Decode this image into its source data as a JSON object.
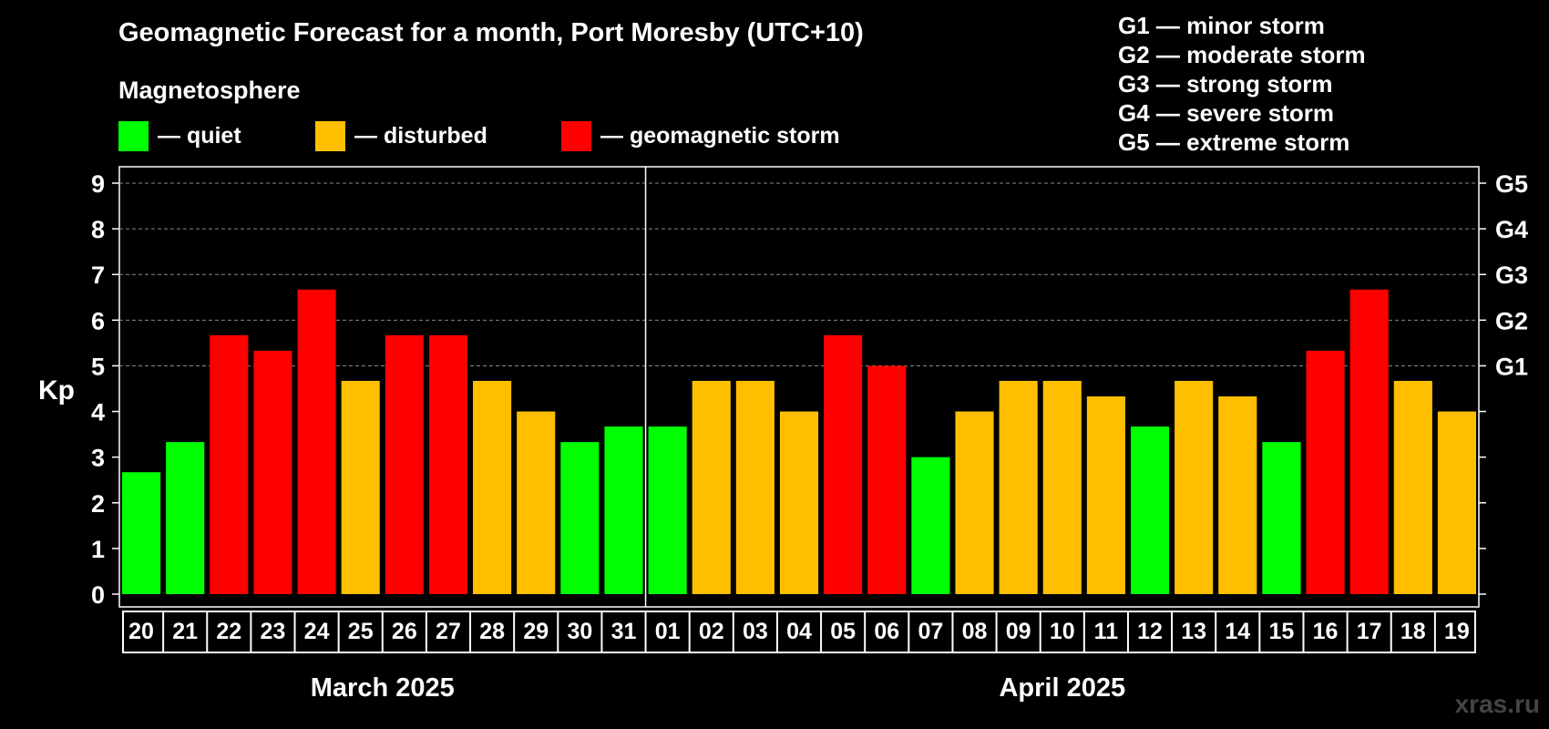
{
  "title": "Geomagnetic Forecast for a month, Port Moresby (UTC+10)",
  "subtitle": "Magnetosphere",
  "legend": {
    "quiet": "— quiet",
    "disturbed": "— disturbed",
    "storm": "— geomagnetic storm"
  },
  "g_levels": [
    "G1 — minor storm",
    "G2 — moderate storm",
    "G3 — strong storm",
    "G4 — severe storm",
    "G5 — extreme storm"
  ],
  "watermark": "xras.ru",
  "colors": {
    "quiet": "#00ff00",
    "disturbed": "#ffbf00",
    "storm": "#ff0000",
    "background": "#000000"
  },
  "chart_data": {
    "type": "bar",
    "title": "Geomagnetic Forecast for a month, Port Moresby (UTC+10)",
    "ylabel": "Kp",
    "ylim": [
      0,
      9
    ],
    "yticks": [
      "0",
      "1",
      "2",
      "3",
      "4",
      "5",
      "6",
      "7",
      "8",
      "9"
    ],
    "right_ticks": [
      {
        "label": "G1",
        "kp": 5
      },
      {
        "label": "G2",
        "kp": 6
      },
      {
        "label": "G3",
        "kp": 7
      },
      {
        "label": "G4",
        "kp": 8
      },
      {
        "label": "G5",
        "kp": 9
      }
    ],
    "grid": "dashed horizontal at Kp 5-9",
    "categories": [
      "20",
      "21",
      "22",
      "23",
      "24",
      "25",
      "26",
      "27",
      "28",
      "29",
      "30",
      "31",
      "01",
      "02",
      "03",
      "04",
      "05",
      "06",
      "07",
      "08",
      "09",
      "10",
      "11",
      "12",
      "13",
      "14",
      "15",
      "16",
      "17",
      "18",
      "19"
    ],
    "values": [
      2.67,
      3.33,
      5.67,
      5.33,
      6.67,
      4.67,
      5.67,
      5.67,
      4.67,
      4.0,
      3.33,
      3.67,
      3.67,
      4.67,
      4.67,
      4.0,
      5.67,
      5.0,
      3.0,
      4.0,
      4.67,
      4.67,
      4.33,
      3.67,
      4.67,
      4.33,
      3.33,
      5.33,
      6.67,
      4.67,
      4.0
    ],
    "levels": [
      "quiet",
      "quiet",
      "storm",
      "storm",
      "storm",
      "disturbed",
      "storm",
      "storm",
      "disturbed",
      "disturbed",
      "quiet",
      "quiet",
      "quiet",
      "disturbed",
      "disturbed",
      "disturbed",
      "storm",
      "storm",
      "quiet",
      "disturbed",
      "disturbed",
      "disturbed",
      "disturbed",
      "quiet",
      "disturbed",
      "disturbed",
      "quiet",
      "storm",
      "storm",
      "disturbed",
      "disturbed"
    ],
    "months": [
      {
        "label": "March 2025",
        "first": 0,
        "last": 11
      },
      {
        "label": "April 2025",
        "first": 12,
        "last": 30
      }
    ]
  }
}
